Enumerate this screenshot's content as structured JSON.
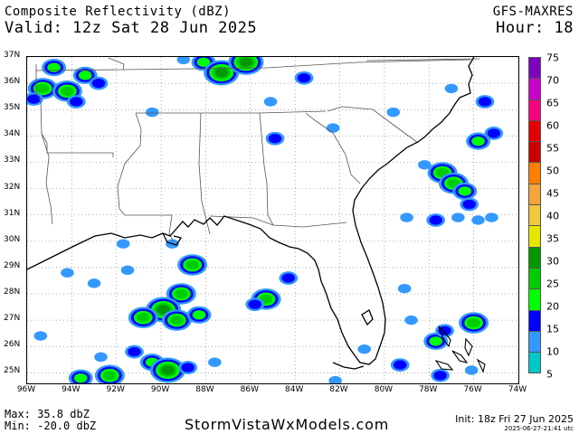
{
  "header": {
    "title": "Composite Reflectivity (dBZ)",
    "valid": "Valid: 12z Sat 28 Jun 2025",
    "model": "GFS-MAXRES",
    "hour": "Hour: 18"
  },
  "map": {
    "lat_labels": [
      "37N",
      "36N",
      "35N",
      "34N",
      "33N",
      "32N",
      "31N",
      "30N",
      "29N",
      "28N",
      "27N",
      "26N",
      "25N"
    ],
    "lon_labels": [
      "96W",
      "94W",
      "92W",
      "90W",
      "88W",
      "86W",
      "84W",
      "82W",
      "80W",
      "78W",
      "76W",
      "74W"
    ],
    "extent": {
      "west": -96,
      "east": -74,
      "south": 24.6,
      "north": 37
    },
    "gridlines": true,
    "colors": {
      "land": "#ffffff",
      "coast": "#000000",
      "grid": "#8c8c8c"
    }
  },
  "colorbar": {
    "labels": [
      "75",
      "70",
      "65",
      "60",
      "55",
      "50",
      "45",
      "40",
      "35",
      "30",
      "25",
      "20",
      "15",
      "10",
      "5"
    ],
    "colors": [
      "#7d02bd",
      "#c800c8",
      "#f7007f",
      "#e40000",
      "#cc0000",
      "#ff7f00",
      "#f5a33b",
      "#f2c83c",
      "#e6e600",
      "#009900",
      "#00cc00",
      "#00ff00",
      "#0000ff",
      "#3399ff",
      "#00c8c8"
    ]
  },
  "echoes": [
    {
      "lon": -94.8,
      "lat": 36.6,
      "dbz": 15
    },
    {
      "lon": -93.4,
      "lat": 36.3,
      "dbz": 18
    },
    {
      "lon": -92.8,
      "lat": 36.0,
      "dbz": 10
    },
    {
      "lon": -95.3,
      "lat": 35.8,
      "dbz": 20
    },
    {
      "lon": -94.2,
      "lat": 35.7,
      "dbz": 22
    },
    {
      "lon": -95.7,
      "lat": 35.4,
      "dbz": 10
    },
    {
      "lon": -93.8,
      "lat": 35.3,
      "dbz": 12
    },
    {
      "lon": -90.4,
      "lat": 34.9,
      "dbz": 8
    },
    {
      "lon": -88.1,
      "lat": 36.8,
      "dbz": 15
    },
    {
      "lon": -87.3,
      "lat": 36.4,
      "dbz": 25
    },
    {
      "lon": -86.2,
      "lat": 36.8,
      "dbz": 28
    },
    {
      "lon": -89.0,
      "lat": 36.9,
      "dbz": 8
    },
    {
      "lon": -83.6,
      "lat": 36.2,
      "dbz": 10
    },
    {
      "lon": -85.1,
      "lat": 35.3,
      "dbz": 8
    },
    {
      "lon": -84.9,
      "lat": 33.9,
      "dbz": 12
    },
    {
      "lon": -82.3,
      "lat": 34.3,
      "dbz": 8
    },
    {
      "lon": -79.6,
      "lat": 34.9,
      "dbz": 8
    },
    {
      "lon": -77.0,
      "lat": 35.8,
      "dbz": 6
    },
    {
      "lon": -75.5,
      "lat": 35.3,
      "dbz": 10
    },
    {
      "lon": -75.8,
      "lat": 33.8,
      "dbz": 18
    },
    {
      "lon": -75.1,
      "lat": 34.1,
      "dbz": 12
    },
    {
      "lon": -77.4,
      "lat": 32.6,
      "dbz": 20
    },
    {
      "lon": -76.9,
      "lat": 32.2,
      "dbz": 24
    },
    {
      "lon": -76.4,
      "lat": 31.9,
      "dbz": 16
    },
    {
      "lon": -78.2,
      "lat": 32.9,
      "dbz": 8
    },
    {
      "lon": -76.2,
      "lat": 31.4,
      "dbz": 12
    },
    {
      "lon": -77.7,
      "lat": 30.8,
      "dbz": 10
    },
    {
      "lon": -76.7,
      "lat": 30.9,
      "dbz": 8
    },
    {
      "lon": -75.8,
      "lat": 30.8,
      "dbz": 8
    },
    {
      "lon": -75.2,
      "lat": 30.9,
      "dbz": 6
    },
    {
      "lon": -79.0,
      "lat": 30.9,
      "dbz": 8
    },
    {
      "lon": -88.6,
      "lat": 29.1,
      "dbz": 24
    },
    {
      "lon": -91.7,
      "lat": 29.9,
      "dbz": 6
    },
    {
      "lon": -89.5,
      "lat": 29.9,
      "dbz": 6
    },
    {
      "lon": -84.3,
      "lat": 28.6,
      "dbz": 10
    },
    {
      "lon": -89.1,
      "lat": 28.0,
      "dbz": 22
    },
    {
      "lon": -89.9,
      "lat": 27.4,
      "dbz": 26
    },
    {
      "lon": -90.8,
      "lat": 27.1,
      "dbz": 20
    },
    {
      "lon": -89.3,
      "lat": 27.0,
      "dbz": 24
    },
    {
      "lon": -88.3,
      "lat": 27.2,
      "dbz": 18
    },
    {
      "lon": -85.3,
      "lat": 27.8,
      "dbz": 22
    },
    {
      "lon": -85.8,
      "lat": 27.6,
      "dbz": 14
    },
    {
      "lon": -91.2,
      "lat": 25.8,
      "dbz": 12
    },
    {
      "lon": -90.4,
      "lat": 25.4,
      "dbz": 18
    },
    {
      "lon": -89.7,
      "lat": 25.1,
      "dbz": 26
    },
    {
      "lon": -88.8,
      "lat": 25.2,
      "dbz": 14
    },
    {
      "lon": -92.3,
      "lat": 24.9,
      "dbz": 22
    },
    {
      "lon": -93.6,
      "lat": 24.8,
      "dbz": 18
    },
    {
      "lon": -87.6,
      "lat": 25.4,
      "dbz": 8
    },
    {
      "lon": -92.7,
      "lat": 25.6,
      "dbz": 8
    },
    {
      "lon": -93.0,
      "lat": 28.4,
      "dbz": 8
    },
    {
      "lon": -94.2,
      "lat": 28.8,
      "dbz": 6
    },
    {
      "lon": -91.5,
      "lat": 28.9,
      "dbz": 6
    },
    {
      "lon": -77.7,
      "lat": 26.2,
      "dbz": 15
    },
    {
      "lon": -77.3,
      "lat": 26.6,
      "dbz": 12
    },
    {
      "lon": -76.0,
      "lat": 26.9,
      "dbz": 20
    },
    {
      "lon": -78.8,
      "lat": 27.0,
      "dbz": 8
    },
    {
      "lon": -80.9,
      "lat": 25.9,
      "dbz": 8
    },
    {
      "lon": -79.3,
      "lat": 25.3,
      "dbz": 10
    },
    {
      "lon": -77.5,
      "lat": 24.9,
      "dbz": 10
    },
    {
      "lon": -76.1,
      "lat": 25.1,
      "dbz": 8
    },
    {
      "lon": -79.1,
      "lat": 28.2,
      "dbz": 8
    },
    {
      "lon": -82.2,
      "lat": 24.7,
      "dbz": 8
    },
    {
      "lon": -95.4,
      "lat": 26.4,
      "dbz": 6
    }
  ],
  "stats": {
    "max": "Max: 35.8 dbZ",
    "min": "Min: -20.0 dbZ"
  },
  "footer": {
    "site": "StormVistaWxModels.com",
    "init": "Init: 18z Fri 27 Jun 2025",
    "stamp": "2025-06-27-21:41 utc"
  }
}
